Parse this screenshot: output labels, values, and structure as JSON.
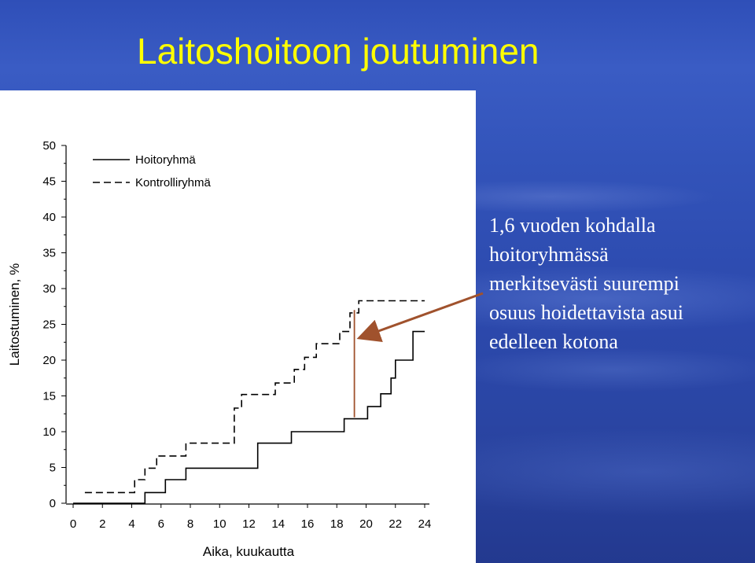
{
  "slide": {
    "title": "Laitoshoitoon joutuminen",
    "annotation_lines": [
      "1,6 vuoden kohdalla",
      "hoitoryhmässä",
      "merkitsevästi suurempi",
      "osuus hoidettavista asui",
      "edelleen kotona"
    ],
    "colors": {
      "title": "#ffff00",
      "annotation_text": "#ffffff",
      "arrow": "#a0522d",
      "marker_line": "#a0522d",
      "series": "#000000"
    }
  },
  "chart_data": {
    "type": "line",
    "step": true,
    "xlabel": "Aika, kuukautta",
    "ylabel": "Laitostuminen, %",
    "xlim": [
      0,
      24
    ],
    "ylim": [
      0,
      50
    ],
    "x_ticks": [
      0,
      2,
      4,
      6,
      8,
      10,
      12,
      14,
      16,
      18,
      20,
      22,
      24
    ],
    "y_ticks": [
      0,
      5,
      10,
      15,
      20,
      25,
      30,
      35,
      40,
      45,
      50
    ],
    "legend_position": "top-left",
    "grid": false,
    "series": [
      {
        "name": "Hoitoryhmä",
        "style": "solid",
        "points": [
          [
            0.0,
            0.0
          ],
          [
            4.9,
            0.0
          ],
          [
            4.9,
            1.5
          ],
          [
            6.3,
            1.5
          ],
          [
            6.3,
            3.3
          ],
          [
            7.7,
            3.3
          ],
          [
            7.7,
            4.9
          ],
          [
            12.6,
            4.9
          ],
          [
            12.6,
            8.4
          ],
          [
            14.9,
            8.4
          ],
          [
            14.9,
            10.0
          ],
          [
            18.5,
            10.0
          ],
          [
            18.5,
            11.8
          ],
          [
            20.1,
            11.8
          ],
          [
            20.1,
            13.5
          ],
          [
            21.0,
            13.5
          ],
          [
            21.0,
            15.3
          ],
          [
            21.7,
            15.3
          ],
          [
            21.7,
            17.5
          ],
          [
            22.0,
            17.5
          ],
          [
            22.0,
            20.0
          ],
          [
            23.2,
            20.0
          ],
          [
            23.2,
            24.0
          ],
          [
            24.0,
            24.0
          ]
        ]
      },
      {
        "name": "Kontrolliryhmä",
        "style": "dashed",
        "points": [
          [
            0.8,
            1.5
          ],
          [
            4.2,
            1.5
          ],
          [
            4.2,
            3.3
          ],
          [
            4.9,
            3.3
          ],
          [
            4.9,
            4.9
          ],
          [
            5.7,
            4.9
          ],
          [
            5.7,
            6.6
          ],
          [
            7.7,
            6.6
          ],
          [
            7.7,
            8.4
          ],
          [
            11.0,
            8.4
          ],
          [
            11.0,
            13.3
          ],
          [
            11.5,
            13.3
          ],
          [
            11.5,
            15.2
          ],
          [
            13.8,
            15.2
          ],
          [
            13.8,
            16.8
          ],
          [
            15.1,
            16.8
          ],
          [
            15.1,
            18.7
          ],
          [
            15.8,
            18.7
          ],
          [
            15.8,
            20.4
          ],
          [
            16.6,
            20.4
          ],
          [
            16.6,
            22.3
          ],
          [
            18.2,
            22.3
          ],
          [
            18.2,
            24.0
          ],
          [
            18.9,
            24.0
          ],
          [
            18.9,
            26.6
          ],
          [
            19.5,
            26.6
          ],
          [
            19.5,
            28.3
          ],
          [
            24.0,
            28.3
          ]
        ]
      }
    ],
    "marker_x": 19.2,
    "marker_y_range": [
      12.0,
      27.0
    ]
  }
}
